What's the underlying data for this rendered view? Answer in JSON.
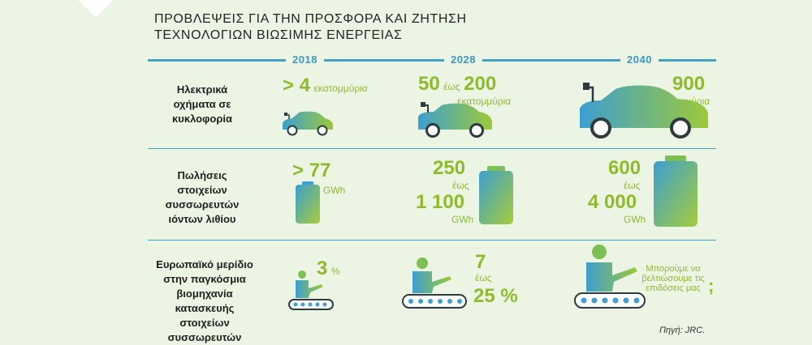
{
  "title": {
    "line1": "ΠΡΟΒΛΕΨΕΙΣ ΓΙΑ ΤΗΝ ΠΡΟΣΦΟΡΑ ΚΑΙ ΖΗΤΗΣΗ",
    "line2": "ΤΕΧΝΟΛΟΓΙΩΝ ΒΙΩΣΙΜΗΣ ΕΝΕΡΓΕΙΑΣ"
  },
  "years": [
    "2018",
    "2028",
    "2040"
  ],
  "rows": {
    "ev": {
      "label": [
        "Ηλεκτρικά",
        "οχήματα σε",
        "κυκλοφορία"
      ],
      "y2018": {
        "value": "> 4",
        "unit": "εκατομμύρια"
      },
      "y2028": {
        "from": "50",
        "sep": "έως",
        "to": "200",
        "unit": "εκατομμύρια"
      },
      "y2040": {
        "value": "900",
        "unit": "εκατομμύρια"
      }
    },
    "battery": {
      "label": [
        "Πωλήσεις",
        "στοιχείων",
        "συσσωρευτών",
        "ιόντων λιθίου"
      ],
      "y2018": {
        "value": "> 77",
        "unit": "GWh"
      },
      "y2028": {
        "from": "250",
        "sep": "έως",
        "to": "1 100",
        "unit": "GWh"
      },
      "y2040": {
        "from": "600",
        "sep": "έως",
        "to": "4 000",
        "unit": "GWh"
      }
    },
    "share": {
      "label": [
        "Ευρωπαϊκό μερίδιο",
        "στην παγκόσμια",
        "βιομηχανία",
        "κατασκευής στοιχείων",
        "συσσωρευτών"
      ],
      "y2018": {
        "value": "3",
        "unit": "%"
      },
      "y2028": {
        "from": "7",
        "sep": "έως",
        "to": "25 %"
      },
      "y2040": {
        "text": [
          "Μπορούμε να",
          "βελτιώσουμε τις",
          "επιδόσεις μας"
        ],
        "mark": ";"
      }
    }
  },
  "source": "Πηγή: JRC.",
  "colors": {
    "green": "#8dbb2c",
    "blue": "#44a0c8",
    "background": "#ecf5e4"
  }
}
